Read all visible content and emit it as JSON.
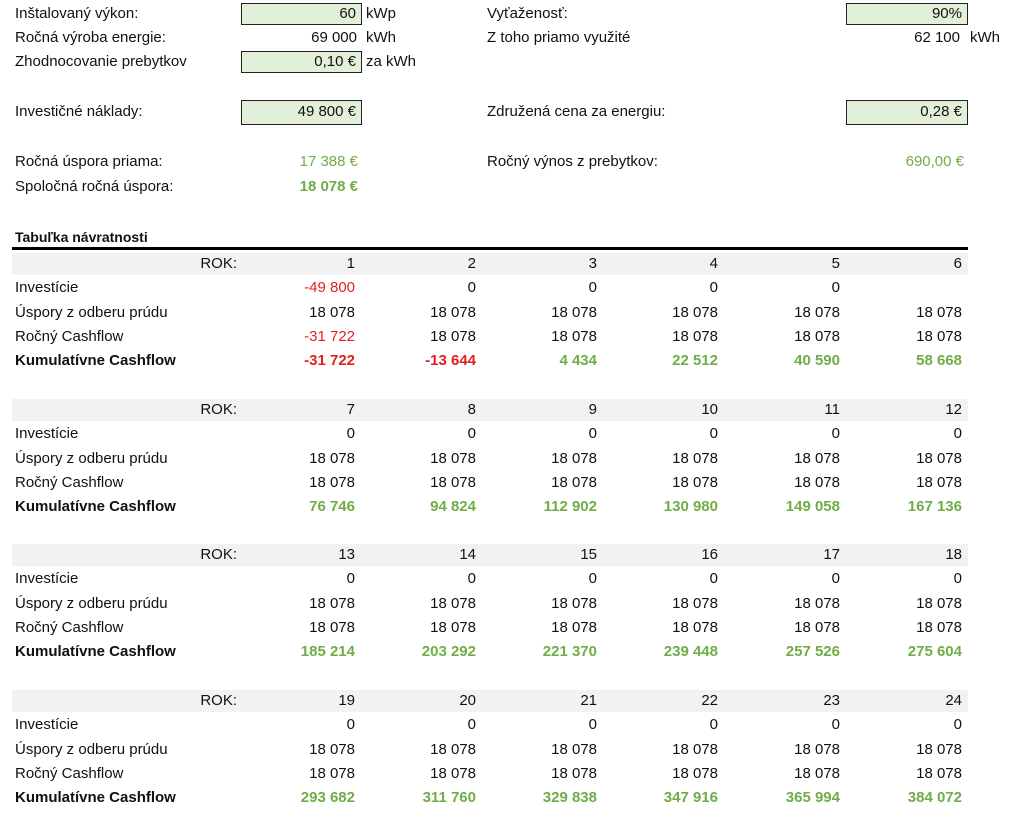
{
  "summary": {
    "installed_power": {
      "label": "Inštalovaný výkon:",
      "value": "60",
      "unit": "kWp"
    },
    "annual_production": {
      "label": "Ročná výroba energie:",
      "value": "69 000",
      "unit": "kWh"
    },
    "surplus_valuation": {
      "label": "Zhodnocovanie prebytkov",
      "value": "0,10 €",
      "unit": "za kWh"
    },
    "utilization": {
      "label": "Vyťaženosť:",
      "value": "90%"
    },
    "directly_used": {
      "label": "Z toho priamo využité",
      "value": "62 100",
      "unit": "kWh"
    },
    "investment_costs": {
      "label": "Investičné náklady:",
      "value": "49 800 €"
    },
    "combined_energy_price": {
      "label": "Združená cena za energiu:",
      "value": "0,28 €"
    },
    "annual_direct_saving": {
      "label": "Ročná úspora priama:",
      "value": "17 388 €"
    },
    "annual_surplus_income": {
      "label": "Ročný výnos z prebytkov:",
      "value": "690,00 €"
    },
    "total_annual_saving": {
      "label": "Spoločná ročná úspora:",
      "value": "18 078 €"
    }
  },
  "table": {
    "title": "Tabuľka návratnosti",
    "rok_label": "ROK:",
    "row_labels": {
      "investment": "Investície",
      "savings": "Úspory z odberu prúdu",
      "cashflow": "Ročný Cashflow",
      "cumulative": "Kumulatívne Cashflow"
    },
    "blocks": [
      {
        "years": [
          "1",
          "2",
          "3",
          "4",
          "5",
          "6"
        ],
        "investment": [
          "-49 800",
          "0",
          "0",
          "0",
          "0",
          ""
        ],
        "savings": [
          "18 078",
          "18 078",
          "18 078",
          "18 078",
          "18 078",
          "18 078"
        ],
        "cashflow": [
          "-31 722",
          "18 078",
          "18 078",
          "18 078",
          "18 078",
          "18 078"
        ],
        "cumulative": [
          "-31 722",
          "-13 644",
          "4 434",
          "22 512",
          "40 590",
          "58 668"
        ]
      },
      {
        "years": [
          "7",
          "8",
          "9",
          "10",
          "11",
          "12"
        ],
        "investment": [
          "0",
          "0",
          "0",
          "0",
          "0",
          "0"
        ],
        "savings": [
          "18 078",
          "18 078",
          "18 078",
          "18 078",
          "18 078",
          "18 078"
        ],
        "cashflow": [
          "18 078",
          "18 078",
          "18 078",
          "18 078",
          "18 078",
          "18 078"
        ],
        "cumulative": [
          "76 746",
          "94 824",
          "112 902",
          "130 980",
          "149 058",
          "167 136"
        ]
      },
      {
        "years": [
          "13",
          "14",
          "15",
          "16",
          "17",
          "18"
        ],
        "investment": [
          "0",
          "0",
          "0",
          "0",
          "0",
          "0"
        ],
        "savings": [
          "18 078",
          "18 078",
          "18 078",
          "18 078",
          "18 078",
          "18 078"
        ],
        "cashflow": [
          "18 078",
          "18 078",
          "18 078",
          "18 078",
          "18 078",
          "18 078"
        ],
        "cumulative": [
          "185 214",
          "203 292",
          "221 370",
          "239 448",
          "257 526",
          "275 604"
        ]
      },
      {
        "years": [
          "19",
          "20",
          "21",
          "22",
          "23",
          "24"
        ],
        "investment": [
          "0",
          "0",
          "0",
          "0",
          "0",
          "0"
        ],
        "savings": [
          "18 078",
          "18 078",
          "18 078",
          "18 078",
          "18 078",
          "18 078"
        ],
        "cashflow": [
          "18 078",
          "18 078",
          "18 078",
          "18 078",
          "18 078",
          "18 078"
        ],
        "cumulative": [
          "293 682",
          "311 760",
          "329 838",
          "347 916",
          "365 994",
          "384 072"
        ]
      }
    ]
  },
  "colors": {
    "input_fill": "#e2f0d9",
    "positive": "#70ad47",
    "negative": "#e02020",
    "band": "#f2f2f2"
  }
}
